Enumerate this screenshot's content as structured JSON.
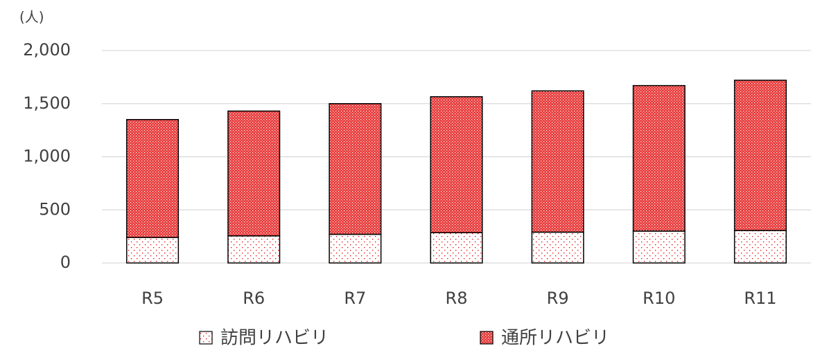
{
  "chart_data": {
    "type": "stacked_bar",
    "y_unit_label": "(人)",
    "categories": [
      "R5",
      "R6",
      "R7",
      "R8",
      "R9",
      "R10",
      "R11"
    ],
    "series": [
      {
        "name": "訪問リハビリ",
        "color": "#e00000",
        "values": [
          240,
          255,
          270,
          285,
          290,
          300,
          305
        ]
      },
      {
        "name": "通所リハビリ",
        "color": "#e00000",
        "values": [
          1110,
          1175,
          1230,
          1280,
          1330,
          1370,
          1415
        ]
      }
    ],
    "ylim": [
      0,
      2000
    ],
    "yticks": [
      0,
      500,
      {
        "value": 1000,
        "label": "1,000"
      },
      {
        "value": 1500,
        "label": "1,500"
      },
      {
        "value": 2000,
        "label": "2,000"
      }
    ],
    "grid": true,
    "legend": "bottom"
  }
}
